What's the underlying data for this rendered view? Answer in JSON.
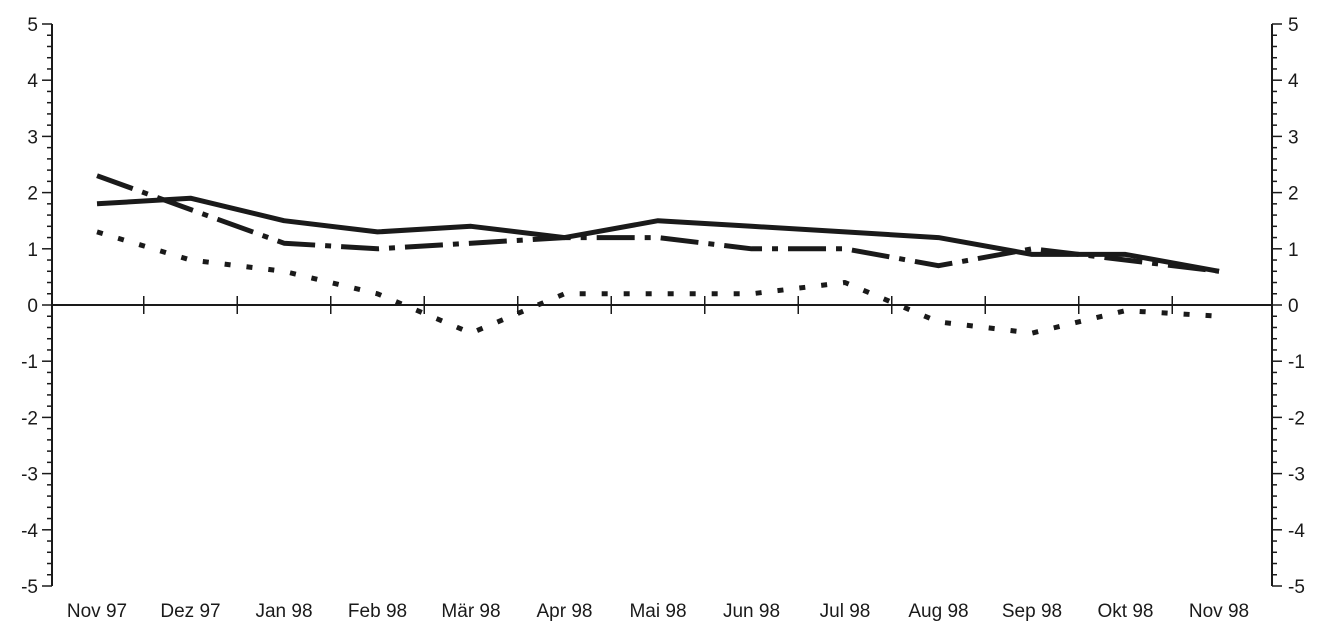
{
  "chart_data": {
    "type": "line",
    "categories": [
      "Nov 97",
      "Dez 97",
      "Jan 98",
      "Feb 98",
      "Mär 98",
      "Apr 98",
      "Mai 98",
      "Jun 98",
      "Jul 98",
      "Aug 98",
      "Sep 98",
      "Okt 98",
      "Nov 98"
    ],
    "series": [
      {
        "style": "solid",
        "values": [
          1.8,
          1.9,
          1.5,
          1.3,
          1.4,
          1.2,
          1.5,
          1.4,
          1.3,
          1.2,
          0.9,
          0.9,
          0.6
        ]
      },
      {
        "style": "dash-dot",
        "values": [
          2.3,
          1.7,
          1.1,
          1.0,
          1.1,
          1.2,
          1.2,
          1.0,
          1.0,
          0.7,
          1.0,
          0.8,
          0.6
        ]
      },
      {
        "style": "dotted",
        "values": [
          1.3,
          0.8,
          0.6,
          0.2,
          -0.5,
          0.2,
          0.2,
          0.2,
          0.4,
          -0.3,
          -0.5,
          -0.1,
          -0.2
        ]
      }
    ],
    "ylim": [
      -5,
      5
    ],
    "y_ticks": [
      "5",
      "4",
      "3",
      "2",
      "1",
      "0",
      "-1",
      "-2",
      "-3",
      "-4",
      "-5"
    ],
    "y_tick_values": [
      5,
      4,
      3,
      2,
      1,
      0,
      -1,
      -2,
      -3,
      -4,
      -5
    ],
    "title": "",
    "xlabel": "",
    "ylabel": "",
    "grid": false,
    "legend": "none",
    "colors": {
      "ink": "#1a1a1a"
    }
  }
}
